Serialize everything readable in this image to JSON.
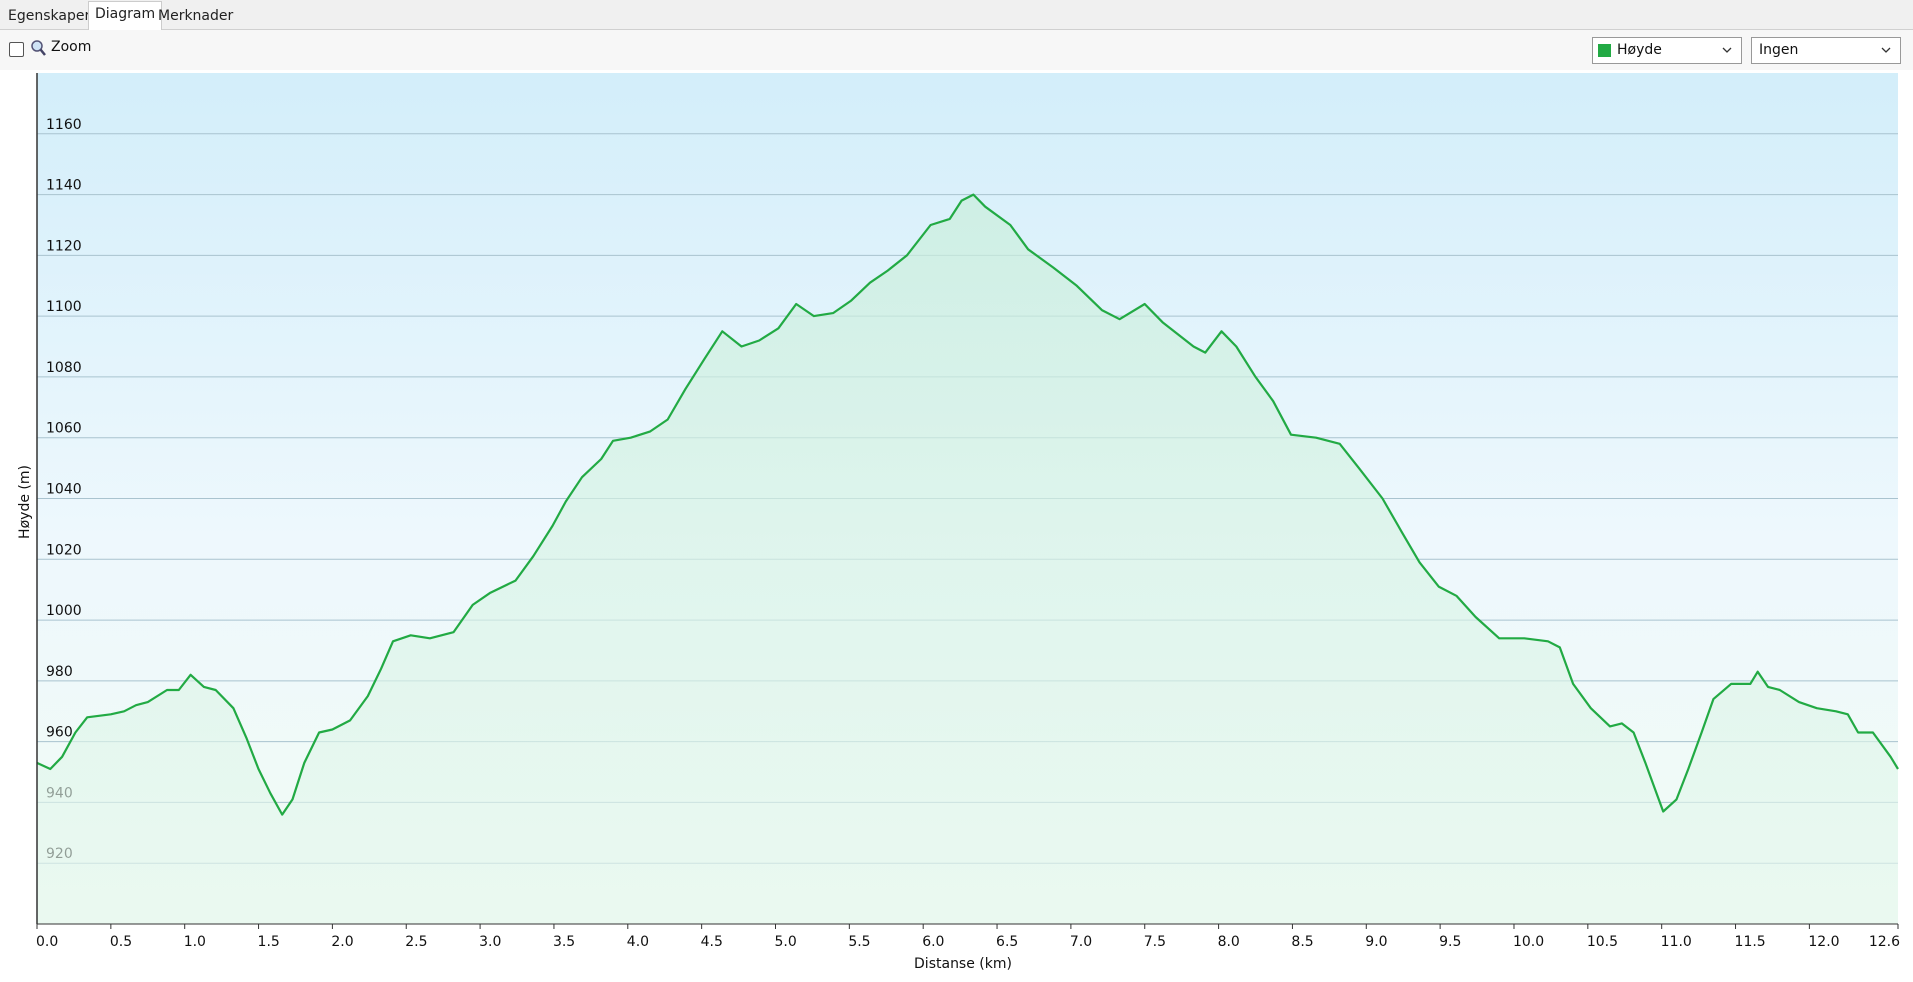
{
  "tabs": [
    "Egenskaper",
    "Diagram",
    "Merknader"
  ],
  "toolbar": {
    "zoom_label": "Zoom",
    "series_select": {
      "value": "Høyde",
      "color": "#22aa44"
    },
    "second_select": {
      "value": "Ingen"
    }
  },
  "chart_data": {
    "type": "area",
    "x_label": "Distanse  (km)",
    "y_label": "Høyde (m)",
    "color": "#22aa44",
    "grid": true,
    "xlim": [
      0,
      12.6
    ],
    "ylim": [
      900,
      1180
    ],
    "xticks": [
      {
        "value": 0,
        "label": "0.0"
      },
      0.5,
      {
        "value": 1,
        "label": "1.0"
      },
      1.5,
      {
        "value": 2,
        "label": "2.0"
      },
      2.5,
      {
        "value": 3,
        "label": "3.0"
      },
      3.5,
      {
        "value": 4,
        "label": "4.0"
      },
      4.5,
      {
        "value": 5,
        "label": "5.0"
      },
      5.5,
      {
        "value": 6,
        "label": "6.0"
      },
      6.5,
      {
        "value": 7,
        "label": "7.0"
      },
      7.5,
      {
        "value": 8,
        "label": "8.0"
      },
      8.5,
      {
        "value": 9,
        "label": "9.0"
      },
      9.5,
      {
        "value": 10,
        "label": "10.0"
      },
      10.5,
      {
        "value": 11,
        "label": "11.0"
      },
      11.5,
      {
        "value": 12,
        "label": "12.0"
      },
      12.6
    ],
    "yticks": [
      920,
      940,
      960,
      980,
      1000,
      1020,
      1040,
      1060,
      1080,
      1100,
      1120,
      1140,
      1160
    ],
    "x": [
      0,
      0.09,
      0.17,
      0.26,
      0.34,
      0.5,
      0.59,
      0.67,
      0.75,
      0.88,
      0.96,
      1.04,
      1.13,
      1.21,
      1.33,
      1.42,
      1.5,
      1.58,
      1.66,
      1.73,
      1.81,
      1.91,
      2.0,
      2.12,
      2.24,
      2.33,
      2.41,
      2.53,
      2.66,
      2.82,
      2.95,
      3.07,
      3.24,
      3.36,
      3.49,
      3.58,
      3.69,
      3.82,
      3.9,
      4.02,
      4.15,
      4.27,
      4.39,
      4.52,
      4.64,
      4.77,
      4.89,
      5.02,
      5.14,
      5.26,
      5.39,
      5.51,
      5.64,
      5.76,
      5.89,
      6.05,
      6.18,
      6.26,
      6.34,
      6.42,
      6.59,
      6.71,
      6.88,
      7.04,
      7.21,
      7.33,
      7.5,
      7.62,
      7.83,
      7.91,
      8.02,
      8.12,
      8.25,
      8.37,
      8.49,
      8.66,
      8.82,
      8.95,
      9.11,
      9.24,
      9.36,
      9.49,
      9.61,
      9.74,
      9.9,
      10.07,
      10.23,
      10.31,
      10.4,
      10.52,
      10.65,
      10.73,
      10.81,
      10.89,
      11.01,
      11.1,
      11.18,
      11.27,
      11.35,
      11.47,
      11.6,
      11.65,
      11.72,
      11.8,
      11.93,
      12.05,
      12.18,
      12.26,
      12.33,
      12.43,
      12.55,
      12.6
    ],
    "values": [
      953,
      951,
      955,
      963,
      968,
      969,
      970,
      972,
      973,
      977,
      977,
      982,
      978,
      977,
      971,
      961,
      951,
      943,
      936,
      941,
      953,
      963,
      964,
      967,
      975,
      984,
      993,
      995,
      994,
      996,
      1005,
      1009,
      1013,
      1021,
      1031,
      1039,
      1047,
      1053,
      1059,
      1060,
      1062,
      1066,
      1076,
      1086,
      1095,
      1090,
      1092,
      1096,
      1104,
      1100,
      1101,
      1105,
      1111,
      1115,
      1120,
      1130,
      1132,
      1138,
      1140,
      1136,
      1130,
      1122,
      1116,
      1110,
      1102,
      1099,
      1104,
      1098,
      1090,
      1088,
      1095,
      1090,
      1080,
      1072,
      1061,
      1060,
      1058,
      1050,
      1040,
      1029,
      1019,
      1011,
      1008,
      1001,
      994,
      994,
      993,
      991,
      979,
      971,
      965,
      966,
      963,
      953,
      937,
      941,
      951,
      963,
      974,
      979,
      979,
      983,
      978,
      977,
      973,
      971,
      970,
      969,
      963,
      963,
      955,
      951
    ]
  }
}
